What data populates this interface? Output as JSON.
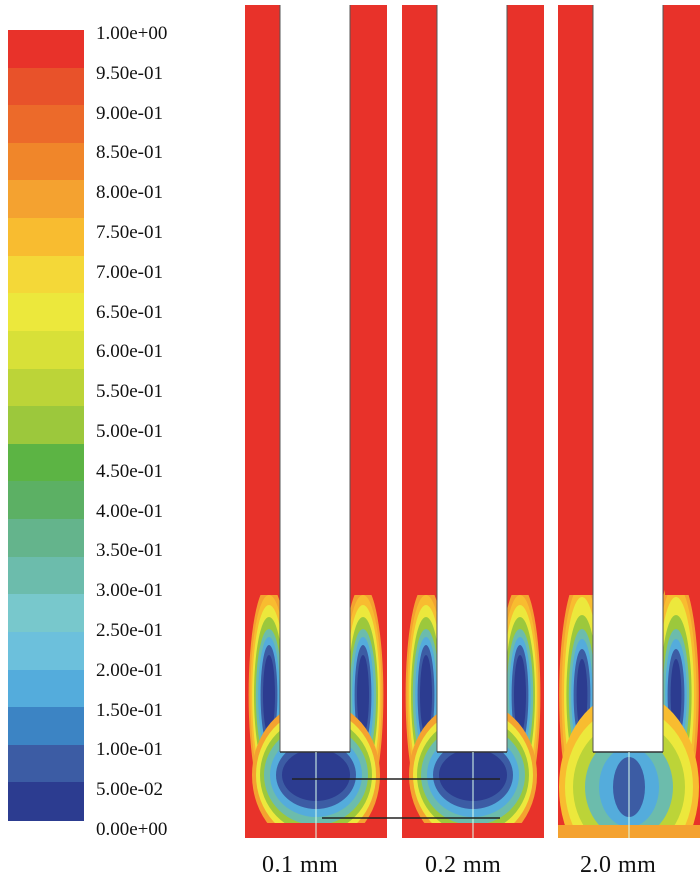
{
  "legend": {
    "labels": [
      "1.00e+00",
      "9.50e-01",
      "9.00e-01",
      "8.50e-01",
      "8.00e-01",
      "7.50e-01",
      "7.00e-01",
      "6.50e-01",
      "6.00e-01",
      "5.50e-01",
      "5.00e-01",
      "4.50e-01",
      "4.00e-01",
      "3.50e-01",
      "3.00e-01",
      "2.50e-01",
      "2.00e-01",
      "1.50e-01",
      "1.00e-01",
      "5.00e-02",
      "0.00e+00"
    ],
    "colors": [
      "#e8322a",
      "#e8522a",
      "#ec6a2a",
      "#f0862a",
      "#f4a230",
      "#f8bc30",
      "#f4d838",
      "#ece83c",
      "#d8e038",
      "#bcd438",
      "#9cc83c",
      "#5cb444",
      "#5cb064",
      "#64b48c",
      "#6cbcac",
      "#78c8cc",
      "#6cc0dc",
      "#54acdc",
      "#3c84c4",
      "#3c5ca4",
      "#2c3c90"
    ]
  },
  "panels": [
    {
      "label": "0.1 mm",
      "variant": "thin"
    },
    {
      "label": "0.2 mm",
      "variant": "thin"
    },
    {
      "label": "2.0 mm",
      "variant": "wide"
    }
  ]
}
